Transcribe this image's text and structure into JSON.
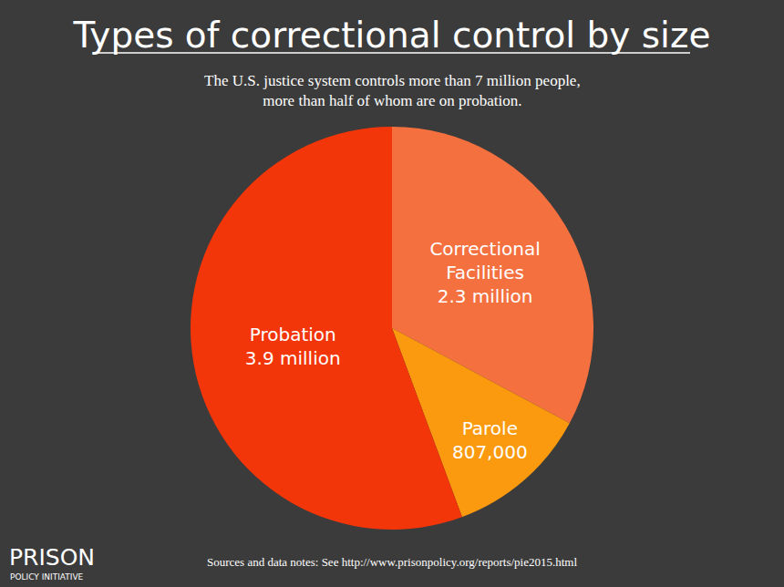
{
  "chart_data": {
    "type": "pie",
    "title": "Types of correctional control by size",
    "subtitle": "The U.S. justice system controls more than 7 million people, more than half of whom are on probation.",
    "categories": [
      "Correctional Facilities",
      "Parole",
      "Probation"
    ],
    "values": [
      2300000,
      807000,
      3900000
    ],
    "value_labels": [
      "2.3 million",
      "807,000",
      "3.9 million"
    ],
    "colors": [
      "#f4703f",
      "#fb9a0e",
      "#f2360a"
    ],
    "data_labels": true,
    "annotations": [
      "PRISON",
      "POLICY INITIATIVE",
      "Sources and data notes: See http://www.prisonpolicy.org/reports/pie2015.html"
    ]
  }
}
